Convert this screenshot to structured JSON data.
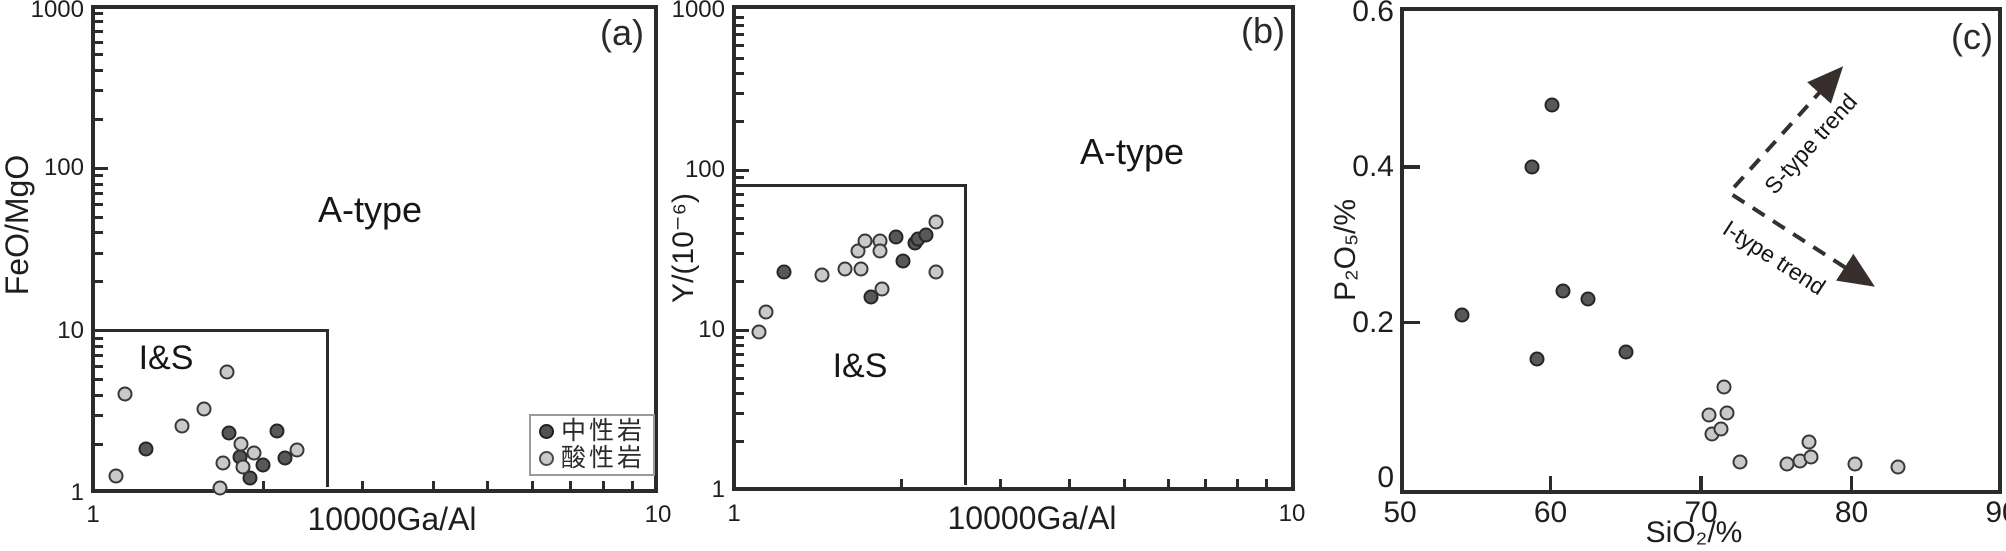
{
  "colors": {
    "axis": "#2e2a27",
    "text": "#1e1e1e",
    "intermediate_fill": "#58585a",
    "intermediate_stroke": "#262626",
    "acidic_fill": "#c9c9c9",
    "acidic_stroke": "#383838",
    "arrow": "#362f2b"
  },
  "legend": {
    "items": [
      {
        "key": "intermediate",
        "label": "中性岩"
      },
      {
        "key": "acidic",
        "label": "酸性岩"
      }
    ]
  },
  "chart_data": [
    {
      "id": "a",
      "type": "scatter",
      "panel_label": "(a)",
      "xlabel": "10000Ga/Al",
      "ylabel": "FeO/MgO",
      "xscale": "log",
      "yscale": "log",
      "xlim": [
        1,
        10
      ],
      "ylim": [
        1,
        1000
      ],
      "x_ticks": [
        1,
        10
      ],
      "x_tick_labels": [
        "1",
        "10"
      ],
      "y_ticks": [
        1,
        10,
        100,
        1000
      ],
      "y_tick_labels": [
        "1",
        "10",
        "100",
        "1000"
      ],
      "annotations": {
        "field_a_type": "A-type",
        "field_is": "I&S"
      },
      "is_boundary": {
        "x_max": 2.6,
        "y_max": 10
      },
      "series": [
        {
          "name": "中性岩",
          "class": "intermediate",
          "points": [
            [
              1.24,
              1.86
            ],
            [
              1.74,
              2.33
            ],
            [
              1.82,
              1.66
            ],
            [
              1.9,
              1.24
            ],
            [
              2.0,
              1.49
            ],
            [
              2.12,
              2.4
            ],
            [
              2.19,
              1.64
            ]
          ]
        },
        {
          "name": "酸性岩",
          "class": "acidic",
          "points": [
            [
              1.14,
              4.1
            ],
            [
              1.73,
              5.6
            ],
            [
              1.1,
              1.27
            ],
            [
              1.44,
              2.6
            ],
            [
              1.57,
              3.3
            ],
            [
              1.83,
              2.0
            ],
            [
              1.7,
              1.53
            ],
            [
              1.84,
              1.45
            ],
            [
              1.93,
              1.76
            ],
            [
              2.3,
              1.84
            ],
            [
              1.68,
              1.07
            ]
          ]
        }
      ]
    },
    {
      "id": "b",
      "type": "scatter",
      "panel_label": "(b)",
      "xlabel": "10000Ga/Al",
      "ylabel": "Y/(10⁻⁶)",
      "xscale": "log",
      "yscale": "log",
      "xlim": [
        1,
        10
      ],
      "ylim": [
        1,
        1000
      ],
      "x_ticks": [
        1,
        10
      ],
      "x_tick_labels": [
        "1",
        "10"
      ],
      "y_ticks": [
        1,
        10,
        100,
        1000
      ],
      "y_tick_labels": [
        "1",
        "10",
        "100",
        "1000"
      ],
      "annotations": {
        "field_a_type": "A-type",
        "field_is": "I&S"
      },
      "is_boundary": {
        "x_max": 2.6,
        "y_max": 80
      },
      "series": [
        {
          "name": "中性岩",
          "class": "intermediate",
          "points": [
            [
              1.23,
              23
            ],
            [
              1.76,
              16
            ],
            [
              1.95,
              38
            ],
            [
              2.01,
              27
            ],
            [
              2.11,
              35
            ],
            [
              2.14,
              37
            ],
            [
              2.21,
              39
            ]
          ]
        },
        {
          "name": "酸性岩",
          "class": "acidic",
          "points": [
            [
              1.11,
              9.7
            ],
            [
              1.14,
              13
            ],
            [
              1.44,
              22
            ],
            [
              1.58,
              24
            ],
            [
              1.69,
              24
            ],
            [
              1.67,
              31
            ],
            [
              1.72,
              36
            ],
            [
              1.83,
              36
            ],
            [
              1.83,
              31
            ],
            [
              1.84,
              18
            ],
            [
              2.3,
              47
            ],
            [
              2.3,
              23
            ]
          ]
        }
      ]
    },
    {
      "id": "c",
      "type": "scatter",
      "panel_label": "(c)",
      "xlabel": "SiO₂/%",
      "ylabel": "P₂O₅/%",
      "xscale": "linear",
      "yscale": "linear",
      "xlim": [
        50,
        90
      ],
      "ylim": [
        0,
        0.6
      ],
      "x_ticks": [
        50,
        60,
        70,
        80,
        90
      ],
      "x_tick_labels": [
        "50",
        "60",
        "70",
        "80",
        "90"
      ],
      "y_ticks": [
        0,
        0.2,
        0.4,
        0.6
      ],
      "y_tick_labels": [
        "0",
        "0.2",
        "0.4",
        "0.6"
      ],
      "arrows": [
        {
          "label": "S-type trend",
          "from": [
            72.2,
            0.374
          ],
          "to": [
            79.0,
            0.52
          ]
        },
        {
          "label": "I-type trend",
          "from": [
            72.1,
            0.364
          ],
          "to": [
            81.0,
            0.253
          ]
        }
      ],
      "series": [
        {
          "name": "中性岩",
          "class": "intermediate",
          "points": [
            [
              54.1,
              0.21
            ],
            [
              58.8,
              0.4
            ],
            [
              60.1,
              0.48
            ],
            [
              60.8,
              0.24
            ],
            [
              62.5,
              0.23
            ],
            [
              59.1,
              0.153
            ],
            [
              65.0,
              0.162
            ]
          ]
        },
        {
          "name": "酸性岩",
          "class": "acidic",
          "points": [
            [
              70.5,
              0.081
            ],
            [
              70.7,
              0.057
            ],
            [
              71.3,
              0.063
            ],
            [
              71.5,
              0.117
            ],
            [
              71.7,
              0.083
            ],
            [
              72.6,
              0.021
            ],
            [
              75.7,
              0.018
            ],
            [
              76.6,
              0.022
            ],
            [
              77.2,
              0.046
            ],
            [
              77.3,
              0.027
            ],
            [
              80.2,
              0.018
            ],
            [
              83.1,
              0.014
            ]
          ]
        }
      ]
    }
  ]
}
